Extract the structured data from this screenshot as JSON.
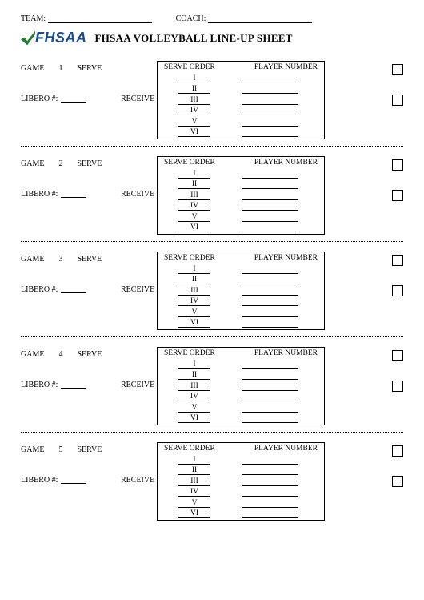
{
  "header": {
    "team_label": "TEAM:",
    "coach_label": "COACH:"
  },
  "logo_text": "FHSAA",
  "title": "FHSAA VOLLEYBALL LINE-UP SHEET",
  "labels": {
    "game": "GAME",
    "serve": "SERVE",
    "receive": "RECEIVE",
    "libero": "LIBERO #:",
    "serve_order": "SERVE ORDER",
    "player_number": "PLAYER NUMBER"
  },
  "romans": [
    "I",
    "II",
    "III",
    "IV",
    "V",
    "VI"
  ],
  "games": [
    {
      "num": "1"
    },
    {
      "num": "2"
    },
    {
      "num": "3"
    },
    {
      "num": "4"
    },
    {
      "num": "5"
    }
  ],
  "colors": {
    "logo_blue": "#1a4a8a",
    "logo_green": "#2a7a3a",
    "text": "#000000",
    "background": "#ffffff"
  }
}
